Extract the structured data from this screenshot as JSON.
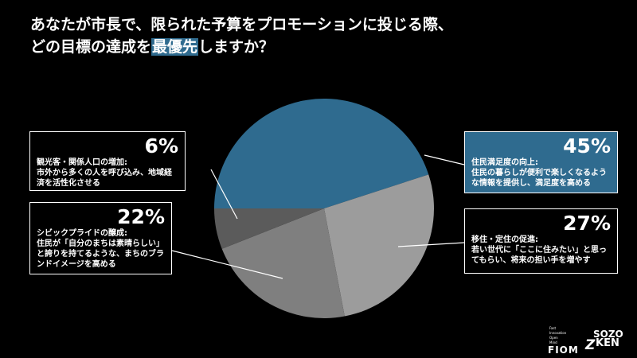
{
  "chart_data": {
    "type": "pie",
    "title": {
      "line1": "あなたが市長で、限られた予算をプロモーションに投じる際、",
      "line2_before": "どの目標の達成を",
      "line2_highlight": "最優先",
      "line2_after": "しますか？"
    },
    "categories": [
      "住民満足度の向上:",
      "移住・定住の促進:",
      "シビックプライドの醸成:",
      "観光客・関係人口の増加:"
    ],
    "descriptions": [
      "住民の暮らしが便利で楽しくなるような情報を提供し、満足度を高める",
      "若い世代に「ここに住みたい」と思ってもらい、将来の担い手を増やす",
      "住民が「自分のまちは素晴らしい」と誇りを持てるような、まちのブランドイメージを高める",
      "市外から多くの人を呼び込み、地域経済を活性化させる"
    ],
    "values": [
      45,
      27,
      22,
      6
    ],
    "value_labels": [
      "45%",
      "27%",
      "22%",
      "6%"
    ],
    "colors": [
      "#2f6b8f",
      "#9c9c9c",
      "#7f7f7f",
      "#5b5b5b"
    ]
  },
  "logos": {
    "fiom_tagline": [
      "Fast",
      "Innovation",
      "Open",
      "Mind"
    ],
    "fiom": "FIOM",
    "sozo": "SOZO",
    "ken": "KEN"
  }
}
